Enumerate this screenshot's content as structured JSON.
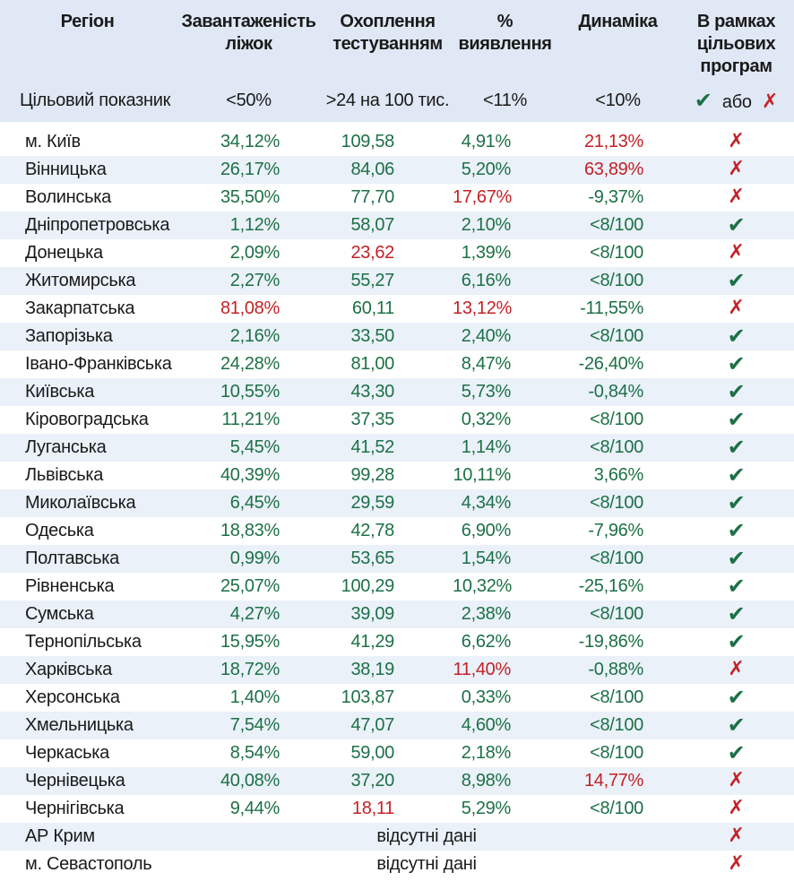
{
  "colors": {
    "good": "#1d7045",
    "bad": "#c32127",
    "header_bg": "#dfe8f4",
    "stripe_bg": "#eaf1f9",
    "text": "#1a1a1a"
  },
  "chart_data": {
    "type": "table",
    "title": "",
    "columns": [
      "Регіон",
      "Завантаженість\nліжок",
      "Охоплення\nтестуванням",
      "%\nвиявлення",
      "Динаміка",
      "В рамках\nцільових\nпрограм"
    ],
    "target_row": {
      "label": "Цільовий показник",
      "bed_occupancy": "<50%",
      "testing_coverage": ">24 на 100 тис.",
      "detection_rate": "<11%",
      "dynamics": "<10%",
      "or_label": "або"
    },
    "icons": {
      "check": "✔",
      "cross": "✗"
    },
    "rows": [
      {
        "region": "м. Київ",
        "values": [
          [
            "34,12%",
            "good"
          ],
          [
            "109,58",
            "good"
          ],
          [
            "4,91%",
            "good"
          ],
          [
            "21,13%",
            "bad"
          ]
        ],
        "program": "fail"
      },
      {
        "region": "Вінницька",
        "values": [
          [
            "26,17%",
            "good"
          ],
          [
            "84,06",
            "good"
          ],
          [
            "5,20%",
            "good"
          ],
          [
            "63,89%",
            "bad"
          ]
        ],
        "program": "fail"
      },
      {
        "region": "Волинська",
        "values": [
          [
            "35,50%",
            "good"
          ],
          [
            "77,70",
            "good"
          ],
          [
            "17,67%",
            "bad"
          ],
          [
            "-9,37%",
            "good"
          ]
        ],
        "program": "fail"
      },
      {
        "region": "Дніпропетровська",
        "values": [
          [
            "1,12%",
            "good"
          ],
          [
            "58,07",
            "good"
          ],
          [
            "2,10%",
            "good"
          ],
          [
            "<8/100",
            "good"
          ]
        ],
        "program": "pass"
      },
      {
        "region": "Донецька",
        "values": [
          [
            "2,09%",
            "good"
          ],
          [
            "23,62",
            "bad"
          ],
          [
            "1,39%",
            "good"
          ],
          [
            "<8/100",
            "good"
          ]
        ],
        "program": "fail"
      },
      {
        "region": "Житомирська",
        "values": [
          [
            "2,27%",
            "good"
          ],
          [
            "55,27",
            "good"
          ],
          [
            "6,16%",
            "good"
          ],
          [
            "<8/100",
            "good"
          ]
        ],
        "program": "pass"
      },
      {
        "region": "Закарпатська",
        "values": [
          [
            "81,08%",
            "bad"
          ],
          [
            "60,11",
            "good"
          ],
          [
            "13,12%",
            "bad"
          ],
          [
            "-11,55%",
            "good"
          ]
        ],
        "program": "fail"
      },
      {
        "region": "Запорізька",
        "values": [
          [
            "2,16%",
            "good"
          ],
          [
            "33,50",
            "good"
          ],
          [
            "2,40%",
            "good"
          ],
          [
            "<8/100",
            "good"
          ]
        ],
        "program": "pass"
      },
      {
        "region": "Івано-Франківська",
        "values": [
          [
            "24,28%",
            "good"
          ],
          [
            "81,00",
            "good"
          ],
          [
            "8,47%",
            "good"
          ],
          [
            "-26,40%",
            "good"
          ]
        ],
        "program": "pass"
      },
      {
        "region": "Київська",
        "values": [
          [
            "10,55%",
            "good"
          ],
          [
            "43,30",
            "good"
          ],
          [
            "5,73%",
            "good"
          ],
          [
            "-0,84%",
            "good"
          ]
        ],
        "program": "pass"
      },
      {
        "region": "Кіровоградська",
        "values": [
          [
            "11,21%",
            "good"
          ],
          [
            "37,35",
            "good"
          ],
          [
            "0,32%",
            "good"
          ],
          [
            "<8/100",
            "good"
          ]
        ],
        "program": "pass"
      },
      {
        "region": "Луганська",
        "values": [
          [
            "5,45%",
            "good"
          ],
          [
            "41,52",
            "good"
          ],
          [
            "1,14%",
            "good"
          ],
          [
            "<8/100",
            "good"
          ]
        ],
        "program": "pass"
      },
      {
        "region": "Львівська",
        "values": [
          [
            "40,39%",
            "good"
          ],
          [
            "99,28",
            "good"
          ],
          [
            "10,11%",
            "good"
          ],
          [
            "3,66%",
            "good"
          ]
        ],
        "program": "pass"
      },
      {
        "region": "Миколаївська",
        "values": [
          [
            "6,45%",
            "good"
          ],
          [
            "29,59",
            "good"
          ],
          [
            "4,34%",
            "good"
          ],
          [
            "<8/100",
            "good"
          ]
        ],
        "program": "pass"
      },
      {
        "region": "Одеська",
        "values": [
          [
            "18,83%",
            "good"
          ],
          [
            "42,78",
            "good"
          ],
          [
            "6,90%",
            "good"
          ],
          [
            "-7,96%",
            "good"
          ]
        ],
        "program": "pass"
      },
      {
        "region": "Полтавська",
        "values": [
          [
            "0,99%",
            "good"
          ],
          [
            "53,65",
            "good"
          ],
          [
            "1,54%",
            "good"
          ],
          [
            "<8/100",
            "good"
          ]
        ],
        "program": "pass"
      },
      {
        "region": "Рівненська",
        "values": [
          [
            "25,07%",
            "good"
          ],
          [
            "100,29",
            "good"
          ],
          [
            "10,32%",
            "good"
          ],
          [
            "-25,16%",
            "good"
          ]
        ],
        "program": "pass"
      },
      {
        "region": "Сумська",
        "values": [
          [
            "4,27%",
            "good"
          ],
          [
            "39,09",
            "good"
          ],
          [
            "2,38%",
            "good"
          ],
          [
            "<8/100",
            "good"
          ]
        ],
        "program": "pass"
      },
      {
        "region": "Тернопільська",
        "values": [
          [
            "15,95%",
            "good"
          ],
          [
            "41,29",
            "good"
          ],
          [
            "6,62%",
            "good"
          ],
          [
            "-19,86%",
            "good"
          ]
        ],
        "program": "pass"
      },
      {
        "region": "Харківська",
        "values": [
          [
            "18,72%",
            "good"
          ],
          [
            "38,19",
            "good"
          ],
          [
            "11,40%",
            "bad"
          ],
          [
            "-0,88%",
            "good"
          ]
        ],
        "program": "fail"
      },
      {
        "region": "Херсонська",
        "values": [
          [
            "1,40%",
            "good"
          ],
          [
            "103,87",
            "good"
          ],
          [
            "0,33%",
            "good"
          ],
          [
            "<8/100",
            "good"
          ]
        ],
        "program": "pass"
      },
      {
        "region": "Хмельницька",
        "values": [
          [
            "7,54%",
            "good"
          ],
          [
            "47,07",
            "good"
          ],
          [
            "4,60%",
            "good"
          ],
          [
            "<8/100",
            "good"
          ]
        ],
        "program": "pass"
      },
      {
        "region": "Черкаська",
        "values": [
          [
            "8,54%",
            "good"
          ],
          [
            "59,00",
            "good"
          ],
          [
            "2,18%",
            "good"
          ],
          [
            "<8/100",
            "good"
          ]
        ],
        "program": "pass"
      },
      {
        "region": "Чернівецька",
        "values": [
          [
            "40,08%",
            "good"
          ],
          [
            "37,20",
            "good"
          ],
          [
            "8,98%",
            "good"
          ],
          [
            "14,77%",
            "bad"
          ]
        ],
        "program": "fail"
      },
      {
        "region": "Чернігівська",
        "values": [
          [
            "9,44%",
            "good"
          ],
          [
            "18,11",
            "bad"
          ],
          [
            "5,29%",
            "good"
          ],
          [
            "<8/100",
            "good"
          ]
        ],
        "program": "fail"
      },
      {
        "region": "АР Крим",
        "no_data": "відсутні дані",
        "program": "fail"
      },
      {
        "region": "м. Севастополь",
        "no_data": "відсутні дані",
        "program": "fail"
      }
    ]
  }
}
